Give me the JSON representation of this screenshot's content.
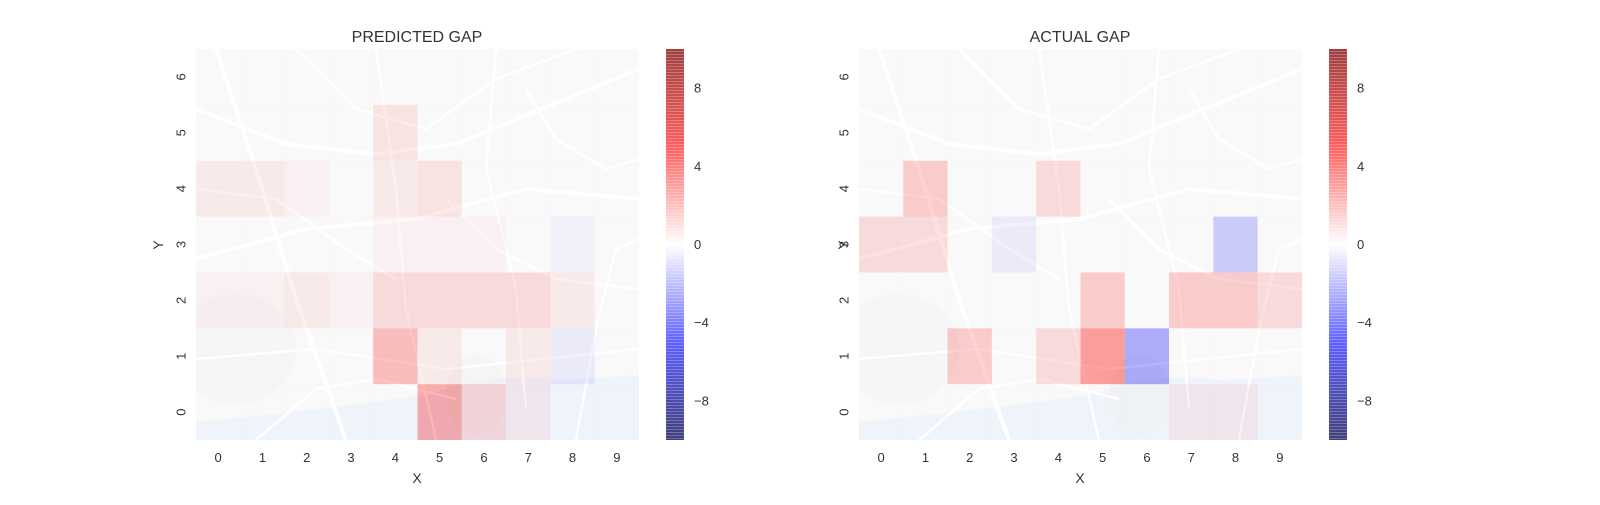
{
  "colors": {
    "background": "#ffffff",
    "map_base": "#f1f1f1",
    "map_roads": "#ffffff",
    "map_water": "#d6e4f5",
    "positive": "#ff0000",
    "negative": "#0000ff",
    "neutral": "#ffffff"
  },
  "chart_data": [
    {
      "type": "heatmap",
      "title": "PREDICTED GAP",
      "xlabel": "X",
      "ylabel": "Y",
      "x": [
        0,
        1,
        2,
        3,
        4,
        5,
        6,
        7,
        8,
        9
      ],
      "y": [
        0,
        1,
        2,
        3,
        4,
        5,
        6
      ],
      "xlim": [
        -0.5,
        9.5
      ],
      "ylim": [
        -0.5,
        6.5
      ],
      "background": "street map",
      "colorbar": {
        "ticks": [
          8,
          4,
          0,
          -4,
          -8
        ],
        "tick_labels": [
          "8",
          "4",
          "0",
          "−4",
          "−8"
        ],
        "range": [
          -10,
          10
        ],
        "colormap": "seismic",
        "alpha": 0.6
      },
      "values": [
        [
          0,
          0,
          0,
          0,
          0,
          5,
          2,
          1,
          0,
          0
        ],
        [
          0,
          0,
          0,
          0,
          4,
          1,
          0,
          1,
          -1,
          0
        ],
        [
          0.5,
          0.5,
          1,
          0.5,
          2,
          2,
          2,
          2,
          1,
          0
        ],
        [
          0,
          0,
          0,
          0,
          0.5,
          0.5,
          0.5,
          0,
          -0.5,
          0
        ],
        [
          1,
          1,
          0.5,
          0,
          1,
          1.5,
          0,
          0,
          0,
          0
        ],
        [
          0,
          0,
          0,
          0,
          1.5,
          0,
          0,
          0,
          0,
          0
        ],
        [
          0,
          0,
          0,
          0,
          0,
          0,
          0,
          0,
          0,
          0
        ]
      ]
    },
    {
      "type": "heatmap",
      "title": "ACTUAL GAP",
      "xlabel": "X",
      "ylabel": "Y",
      "x": [
        0,
        1,
        2,
        3,
        4,
        5,
        6,
        7,
        8,
        9
      ],
      "y": [
        0,
        1,
        2,
        3,
        4,
        5,
        6
      ],
      "xlim": [
        -0.5,
        9.5
      ],
      "ylim": [
        -0.5,
        6.5
      ],
      "background": "street map",
      "colorbar": {
        "ticks": [
          8,
          4,
          0,
          -4,
          -8
        ],
        "tick_labels": [
          "8",
          "4",
          "0",
          "−4",
          "−8"
        ],
        "range": [
          -10,
          10
        ],
        "colormap": "seismic",
        "alpha": 0.6
      },
      "values": [
        [
          0,
          0,
          0,
          0,
          0,
          0,
          0,
          1,
          1,
          0
        ],
        [
          0,
          0,
          3,
          0,
          2,
          6,
          -5,
          0,
          0,
          0
        ],
        [
          0,
          0,
          0,
          0,
          0,
          3,
          0,
          3,
          3,
          2
        ],
        [
          2,
          2,
          0,
          -1,
          0,
          0,
          0,
          0,
          -3,
          0
        ],
        [
          0,
          3,
          0,
          0,
          2,
          0,
          0,
          0,
          0,
          0
        ],
        [
          0,
          0,
          0,
          0,
          0,
          0,
          0,
          0,
          0,
          0
        ],
        [
          0,
          0,
          0,
          0,
          0,
          0,
          0,
          0,
          0,
          0
        ]
      ]
    }
  ]
}
